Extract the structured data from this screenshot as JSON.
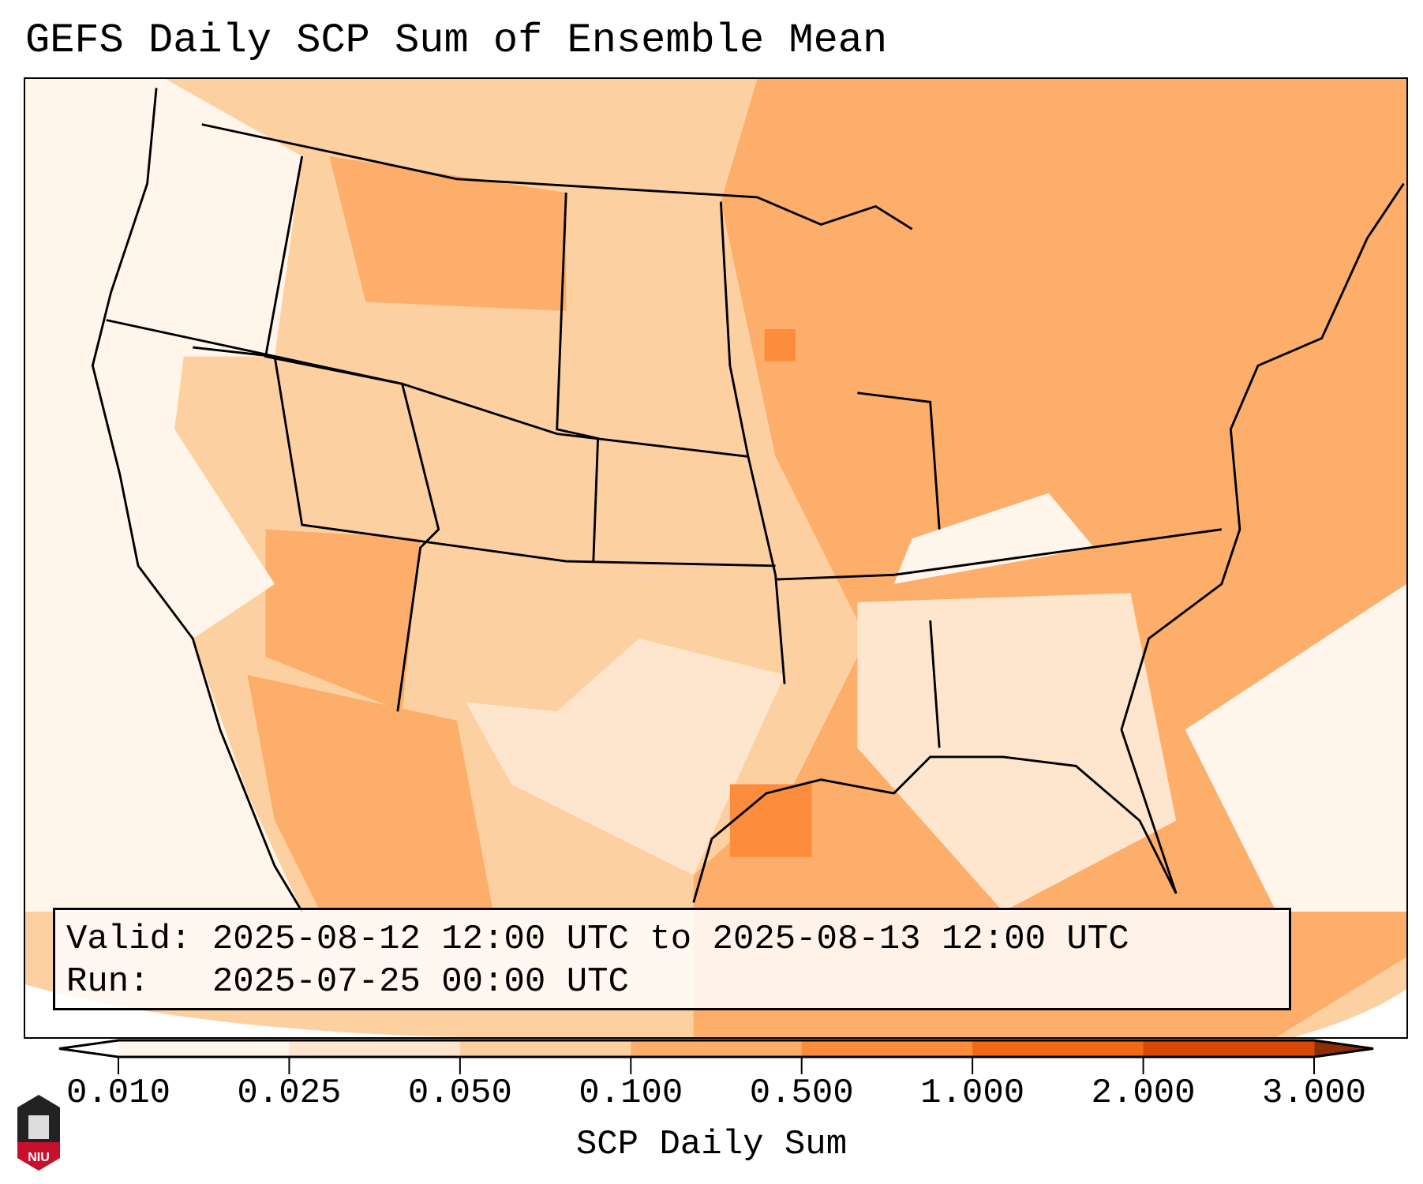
{
  "title": "GEFS Daily SCP Sum of Ensemble Mean",
  "info": {
    "valid_line": "Valid: 2025-08-12 12:00 UTC to 2025-08-13 12:00 UTC",
    "run_line": "Run:   2025-07-25 00:00 UTC"
  },
  "logo_text": "NIU",
  "chart_data": {
    "type": "heatmap",
    "title": "GEFS Daily SCP Sum of Ensemble Mean",
    "colorbar": {
      "label": "SCP Daily Sum",
      "levels": [
        "0.010",
        "0.025",
        "0.050",
        "0.100",
        "0.500",
        "1.000",
        "2.000",
        "3.000"
      ],
      "colors": [
        "#fff5eb",
        "#fee6ce",
        "#fdd0a2",
        "#fdae6b",
        "#fd8d3c",
        "#f16913",
        "#d94801"
      ],
      "extend_min_color": "#ffffff",
      "extend_max_color": "#8c2d04"
    },
    "summary_levels": {
      "west_coast": "0.010-0.025",
      "interior_west": "0.050-0.100",
      "central_east": "0.100-0.500",
      "gulf_peak": "0.500-1.000"
    }
  }
}
